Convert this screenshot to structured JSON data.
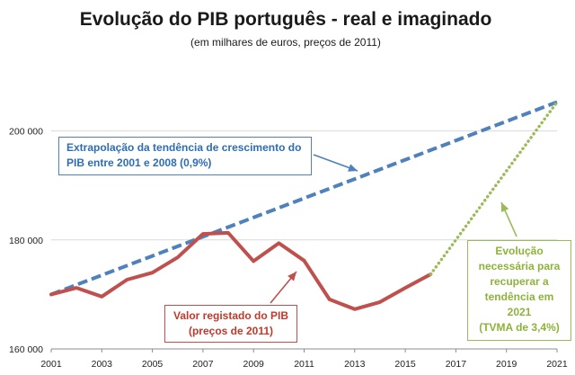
{
  "title": "Evolução do PIB português - real e imaginado",
  "subtitle": "(em milhares de euros, preços de 2011)",
  "colors": {
    "trend": "#4f81bd",
    "actual": "#c0504d",
    "needed": "#9bbb59",
    "grid": "#d9d9d9"
  },
  "annotations": {
    "trend": {
      "lines": [
        "Extrapolação da tendência de crescimento do",
        "PIB entre 2001 e 2008 (0,9%)"
      ]
    },
    "actual": {
      "lines": [
        "Valor registado do PIB",
        "(preços de 2011)"
      ]
    },
    "needed": {
      "lines": [
        "Evolução",
        "necessária para",
        "recuperar a",
        "tendência em",
        "2021",
        "(TVMA de 3,4%)"
      ]
    }
  },
  "chart_data": {
    "type": "line",
    "title": "Evolução do PIB português - real e imaginado",
    "subtitle": "(em milhares de euros, preços de 2011)",
    "xlim": [
      2001,
      2021
    ],
    "ylim": [
      160000,
      210000
    ],
    "x_ticks": [
      2001,
      2003,
      2005,
      2007,
      2009,
      2011,
      2013,
      2015,
      2017,
      2019,
      2021
    ],
    "y_ticks": [
      160000,
      180000,
      200000
    ],
    "x_tick_labels": [
      "2001",
      "2003",
      "2005",
      "2007",
      "2009",
      "2011",
      "2013",
      "2015",
      "2017",
      "2019",
      "2021"
    ],
    "y_tick_labels": [
      "160 000",
      "180 000",
      "200 000"
    ],
    "grid": "horizontal",
    "series": [
      {
        "key": "trend",
        "style": "dashed",
        "x": [
          2001,
          2021
        ],
        "y": [
          170000,
          205300
        ]
      },
      {
        "key": "actual",
        "style": "solid",
        "x": [
          2001,
          2002,
          2003,
          2004,
          2005,
          2006,
          2007,
          2008,
          2009,
          2010,
          2011,
          2012,
          2013,
          2014,
          2015,
          2016
        ],
        "y": [
          170000,
          171200,
          169600,
          172700,
          174000,
          176800,
          181100,
          181300,
          176100,
          179400,
          176200,
          169100,
          167300,
          168600,
          171200,
          173700
        ]
      },
      {
        "key": "needed",
        "style": "dotted",
        "x": [
          2016,
          2021
        ],
        "y": [
          173700,
          205300
        ]
      }
    ]
  }
}
